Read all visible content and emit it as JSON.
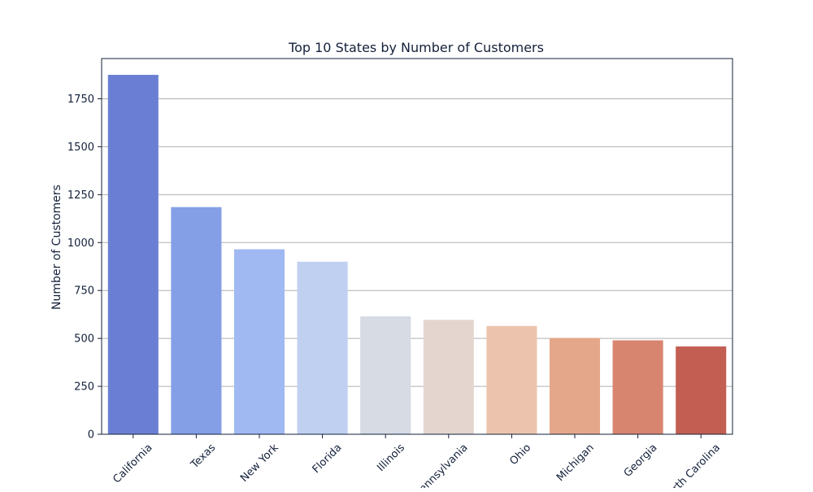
{
  "chart_data": {
    "type": "bar",
    "title": "Top 10 States by Number of Customers",
    "xlabel": "",
    "ylabel": "Number of Customers",
    "categories": [
      "California",
      "Texas",
      "New York",
      "Florida",
      "Illinois",
      "Pennsylvania",
      "Ohio",
      "Michigan",
      "Georgia",
      "North Carolina"
    ],
    "values": [
      1875,
      1185,
      965,
      900,
      615,
      597,
      565,
      502,
      490,
      458
    ],
    "colors": [
      "#6a7fd4",
      "#849fe6",
      "#a1b9f3",
      "#bfd0f1",
      "#d6dbe4",
      "#e4d6cf",
      "#ecc4ad",
      "#e5a78a",
      "#d88570",
      "#c25e52"
    ],
    "yticks": [
      0,
      250,
      500,
      750,
      1000,
      1250,
      1500,
      1750
    ],
    "ylim": [
      0,
      1960
    ],
    "grid": "y",
    "legend": "none"
  }
}
